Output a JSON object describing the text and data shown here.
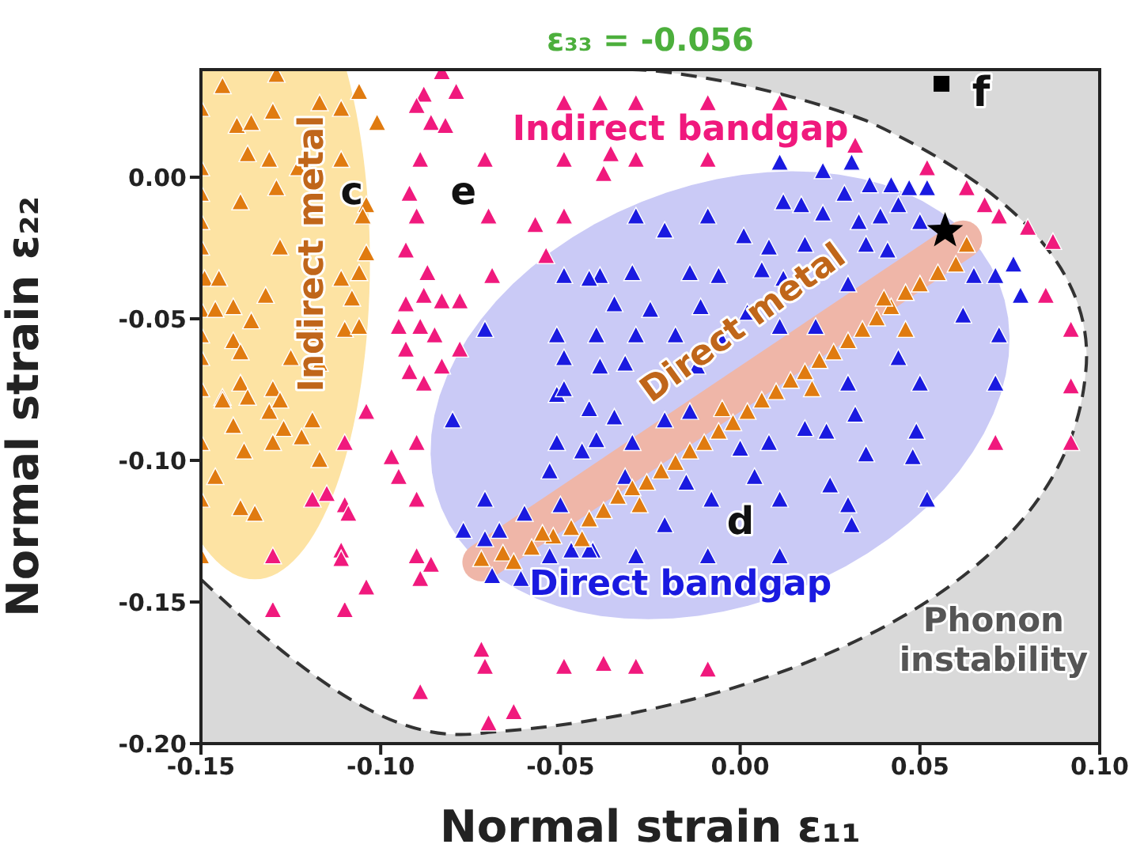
{
  "chart_data": {
    "type": "scatter",
    "title": "ε₃₃ = -0.056",
    "xlabel": "Normal strain ε₁₁",
    "ylabel": "Normal strain ε₂₂",
    "xlim": [
      -0.15,
      0.1
    ],
    "ylim": [
      -0.2,
      0.038
    ],
    "xticks": [
      {
        "value": -0.15,
        "label": "-0.15"
      },
      {
        "value": -0.1,
        "label": "-0.10"
      },
      {
        "value": -0.05,
        "label": "-0.05"
      },
      {
        "value": 0,
        "label": "0.00"
      },
      {
        "value": 0.05,
        "label": "0.05"
      },
      {
        "value": 0.1,
        "label": "0.10"
      }
    ],
    "yticks": [
      {
        "value": -0.2,
        "label": "-0.20"
      },
      {
        "value": -0.15,
        "label": "-0.15"
      },
      {
        "value": -0.1,
        "label": "-0.10"
      },
      {
        "value": -0.05,
        "label": "-0.05"
      },
      {
        "value": 0,
        "label": "0.00"
      }
    ],
    "grid": false,
    "legend": false,
    "marker": "triangle",
    "annotations": [
      "Indirect bandgap",
      "Direct bandgap",
      "Indirect metal",
      "Direct metal",
      "Phonon instability",
      "c",
      "d",
      "e",
      "f"
    ],
    "series": [
      {
        "color": "#f0197d",
        "x": [
          -0.083,
          -0.088,
          -0.079,
          -0.09,
          -0.086,
          -0.082,
          -0.089,
          -0.071,
          -0.049,
          -0.092,
          -0.09,
          -0.07,
          -0.057,
          -0.049,
          -0.093,
          -0.054,
          -0.087,
          -0.069,
          -0.088,
          -0.083,
          -0.078,
          -0.093,
          -0.095,
          -0.089,
          -0.085,
          -0.093,
          -0.078,
          -0.092,
          -0.088,
          -0.083,
          -0.039,
          -0.029,
          -0.009,
          0.011,
          -0.036,
          -0.029,
          -0.038,
          -0.009,
          0.032,
          0.052,
          0.063,
          0.068,
          0.072,
          0.08,
          0.087,
          0.085,
          0.092,
          0.092,
          -0.049,
          0.071,
          0.092,
          -0.038,
          -0.029,
          -0.009,
          -0.104,
          -0.11,
          -0.097,
          -0.095,
          -0.09,
          -0.09,
          -0.119,
          -0.115,
          -0.11,
          -0.109,
          -0.13,
          -0.111,
          -0.111,
          -0.09,
          -0.086,
          -0.089,
          -0.104,
          -0.13,
          -0.11,
          -0.072,
          -0.071,
          -0.089,
          -0.049,
          -0.07,
          -0.063
        ],
        "values": [
          0.037,
          0.029,
          0.03,
          0.025,
          0.019,
          0.018,
          0.006,
          0.006,
          0.006,
          -0.006,
          -0.014,
          -0.014,
          -0.017,
          -0.014,
          -0.026,
          -0.028,
          -0.034,
          -0.035,
          -0.042,
          -0.044,
          -0.044,
          -0.045,
          -0.053,
          -0.053,
          -0.056,
          -0.061,
          -0.061,
          -0.069,
          -0.073,
          -0.067,
          0.026,
          0.026,
          0.026,
          0.026,
          0.008,
          0.006,
          0.001,
          0.006,
          0.011,
          0.003,
          -0.004,
          -0.01,
          -0.014,
          -0.018,
          -0.023,
          -0.042,
          -0.054,
          -0.074,
          0.026,
          -0.094,
          -0.094,
          -0.172,
          -0.173,
          -0.174,
          -0.083,
          -0.094,
          -0.099,
          -0.106,
          -0.094,
          -0.114,
          -0.114,
          -0.112,
          -0.116,
          -0.119,
          -0.134,
          -0.132,
          -0.135,
          -0.134,
          -0.137,
          -0.142,
          -0.145,
          -0.153,
          -0.153,
          -0.167,
          -0.173,
          -0.182,
          -0.173,
          -0.193,
          -0.189
        ]
      },
      {
        "color": "#1a1ae0",
        "x": [
          0.011,
          0.023,
          0.031,
          0.036,
          0.042,
          0.047,
          0.052,
          0.012,
          0.017,
          0.023,
          0.029,
          0.033,
          0.039,
          0.044,
          0.05,
          -0.029,
          -0.021,
          -0.009,
          0.001,
          0.008,
          0.018,
          0.035,
          0.041,
          -0.039,
          -0.03,
          -0.014,
          -0.006,
          0.006,
          0.012,
          0.03,
          0.065,
          0.071,
          0.076,
          0.078,
          0.062,
          -0.035,
          -0.025,
          -0.011,
          0.002,
          0.011,
          0.021,
          0.072,
          -0.04,
          -0.029,
          -0.018,
          -0.005,
          -0.039,
          -0.032,
          -0.012,
          0.044,
          0.03,
          0.05,
          0.071,
          -0.035,
          -0.021,
          -0.014,
          -0.04,
          -0.03,
          0.0,
          0.008,
          0.018,
          0.024,
          0.032,
          0.035,
          0.049,
          0.048,
          -0.032,
          -0.015,
          -0.008,
          0.004,
          0.011,
          0.025,
          0.03,
          0.052,
          -0.021,
          0.031,
          -0.041,
          -0.029,
          -0.009,
          0.011,
          -0.08,
          -0.051,
          -0.042,
          -0.051,
          -0.044,
          -0.053,
          -0.071,
          -0.05,
          -0.077,
          -0.067,
          -0.06,
          -0.071,
          -0.053,
          -0.047,
          -0.042,
          -0.069,
          -0.061,
          -0.049,
          -0.071,
          -0.051,
          -0.049,
          -0.049,
          -0.042
        ],
        "values": [
          0.005,
          0.002,
          0.005,
          -0.003,
          -0.003,
          -0.004,
          -0.004,
          -0.009,
          -0.01,
          -0.013,
          -0.006,
          -0.016,
          -0.014,
          -0.01,
          -0.016,
          -0.014,
          -0.019,
          -0.014,
          -0.021,
          -0.025,
          -0.024,
          -0.024,
          -0.026,
          -0.035,
          -0.034,
          -0.034,
          -0.035,
          -0.033,
          -0.036,
          -0.038,
          -0.035,
          -0.035,
          -0.031,
          -0.042,
          -0.049,
          -0.045,
          -0.047,
          -0.046,
          -0.048,
          -0.053,
          -0.053,
          -0.056,
          -0.056,
          -0.056,
          -0.056,
          -0.058,
          -0.067,
          -0.066,
          -0.067,
          -0.064,
          -0.073,
          -0.073,
          -0.073,
          -0.085,
          -0.086,
          -0.083,
          -0.093,
          -0.094,
          -0.096,
          -0.094,
          -0.089,
          -0.09,
          -0.084,
          -0.098,
          -0.09,
          -0.099,
          -0.106,
          -0.108,
          -0.114,
          -0.106,
          -0.114,
          -0.109,
          -0.116,
          -0.114,
          -0.123,
          -0.123,
          -0.132,
          -0.134,
          -0.134,
          -0.134,
          -0.086,
          -0.077,
          -0.082,
          -0.094,
          -0.097,
          -0.104,
          -0.114,
          -0.116,
          -0.125,
          -0.125,
          -0.119,
          -0.128,
          -0.134,
          -0.132,
          -0.132,
          -0.141,
          -0.142,
          -0.035,
          -0.054,
          -0.056,
          -0.064,
          -0.075,
          -0.036
        ]
      },
      {
        "color": "#e07b10",
        "x": [
          -0.144,
          -0.129,
          -0.15,
          -0.14,
          -0.136,
          -0.13,
          -0.117,
          -0.111,
          -0.106,
          -0.101,
          -0.15,
          -0.137,
          -0.131,
          -0.123,
          -0.111,
          -0.15,
          -0.15,
          -0.139,
          -0.129,
          -0.104,
          -0.105,
          -0.15,
          -0.128,
          -0.104,
          -0.106,
          -0.111,
          -0.149,
          -0.145,
          -0.132,
          -0.108,
          -0.15,
          -0.146,
          -0.141,
          -0.136,
          -0.11,
          -0.106,
          -0.15,
          -0.141,
          -0.118,
          -0.15,
          -0.139,
          -0.125,
          -0.117,
          -0.15,
          -0.144,
          -0.139,
          -0.13,
          -0.144,
          -0.137,
          -0.131,
          -0.128,
          -0.141,
          -0.127,
          -0.122,
          -0.119,
          -0.15,
          -0.138,
          -0.13,
          -0.117,
          -0.146,
          -0.15,
          -0.139,
          -0.135,
          -0.15,
          -0.072,
          -0.066,
          -0.063,
          -0.058,
          -0.052,
          -0.047,
          -0.042,
          -0.038,
          -0.034,
          -0.03,
          -0.026,
          -0.022,
          -0.018,
          -0.014,
          -0.01,
          -0.006,
          -0.002,
          0.002,
          0.006,
          0.01,
          0.014,
          0.018,
          0.022,
          0.026,
          0.03,
          0.034,
          0.038,
          0.042,
          0.046,
          0.05,
          0.055,
          0.06,
          0.063,
          0.046,
          0.04,
          0.02,
          -0.005,
          -0.028,
          -0.044,
          -0.055
        ],
        "values": [
          0.032,
          0.036,
          0.024,
          0.018,
          0.019,
          0.023,
          0.026,
          0.024,
          0.03,
          0.019,
          0.003,
          0.008,
          0.006,
          0.003,
          0.006,
          -0.006,
          -0.016,
          -0.009,
          -0.004,
          -0.01,
          -0.014,
          -0.025,
          -0.025,
          -0.027,
          -0.034,
          -0.036,
          -0.036,
          -0.036,
          -0.042,
          -0.043,
          -0.047,
          -0.047,
          -0.046,
          -0.051,
          -0.054,
          -0.053,
          -0.056,
          -0.058,
          -0.056,
          -0.064,
          -0.062,
          -0.064,
          -0.066,
          -0.075,
          -0.078,
          -0.073,
          -0.075,
          -0.079,
          -0.078,
          -0.083,
          -0.079,
          -0.088,
          -0.089,
          -0.092,
          -0.086,
          -0.094,
          -0.097,
          -0.094,
          -0.1,
          -0.106,
          -0.114,
          -0.117,
          -0.119,
          -0.134,
          -0.135,
          -0.133,
          -0.136,
          -0.131,
          -0.127,
          -0.124,
          -0.121,
          -0.118,
          -0.113,
          -0.11,
          -0.108,
          -0.104,
          -0.101,
          -0.097,
          -0.094,
          -0.09,
          -0.087,
          -0.083,
          -0.079,
          -0.076,
          -0.072,
          -0.069,
          -0.065,
          -0.062,
          -0.058,
          -0.054,
          -0.05,
          -0.046,
          -0.041,
          -0.038,
          -0.034,
          -0.031,
          -0.024,
          -0.054,
          -0.043,
          -0.075,
          -0.082,
          -0.116,
          -0.128,
          -0.126
        ]
      },
      {
        "color": "#000000",
        "marker": "star",
        "x": [
          0.057
        ],
        "values": [
          -0.019
        ]
      },
      {
        "color": "#000000",
        "marker": "square",
        "x": [
          0.056
        ],
        "values": [
          0.033
        ]
      }
    ]
  }
}
